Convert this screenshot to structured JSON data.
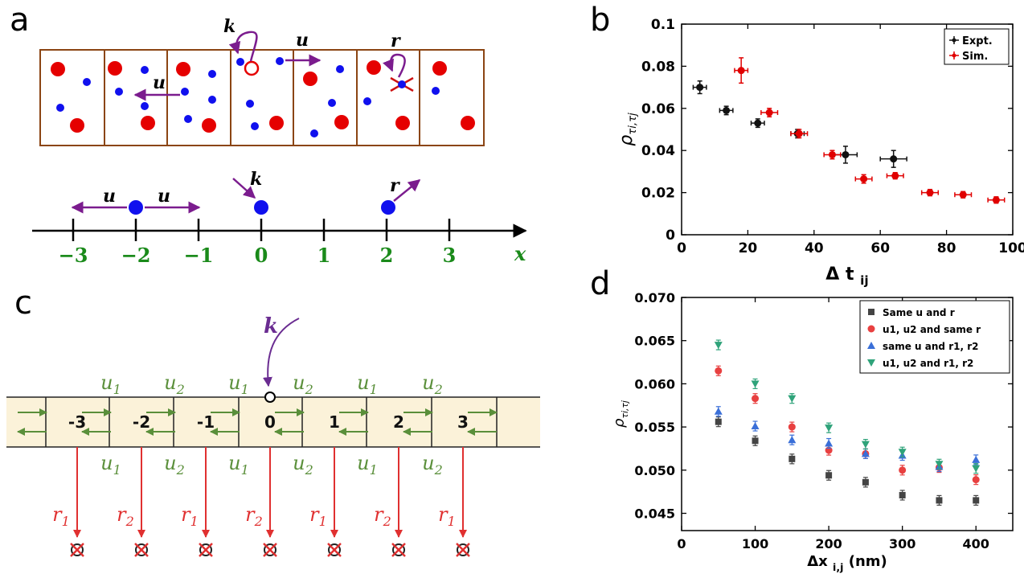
{
  "panel_labels": {
    "a": "a",
    "b": "b",
    "c": "c",
    "d": "d"
  },
  "panel_a": {
    "box_labels": {
      "u_left": "u",
      "k": "k",
      "u_right": "u",
      "r": "r"
    },
    "line_labels": {
      "u_left": "u",
      "u_right": "u",
      "k": "k",
      "r": "r"
    },
    "ticks": [
      "−3",
      "−2",
      "−1",
      "0",
      "1",
      "2",
      "3"
    ],
    "axis_label": "x",
    "colors": {
      "particle": "#e50000",
      "small": "#0000ee",
      "arrow": "#7b1c8e",
      "box": "#8b4513",
      "tick_label": "#1a8a1a"
    }
  },
  "panel_c": {
    "k_label": "k",
    "cells": [
      "-3",
      "-2",
      "-1",
      "0",
      "1",
      "2",
      "3"
    ],
    "top_rates": [
      "u1",
      "u2",
      "u1",
      "u2",
      "u1",
      "u2"
    ],
    "bottom_rates": [
      "u1",
      "u2",
      "u1",
      "u2",
      "u1",
      "u2"
    ],
    "removal_rates": [
      "r1",
      "r2",
      "r1",
      "r2",
      "r1",
      "r2",
      "r1"
    ],
    "colors": {
      "rate": "#5a8f3a",
      "removal": "#e03030",
      "k": "#6a2c91",
      "band": "#fbf2d9"
    }
  },
  "chart_data": [
    {
      "type": "scatter",
      "panel": "b",
      "xlabel": "Δ t",
      "xlabel_sub": "ij",
      "ylabel": "ρ",
      "ylabel_sub": "τi,τj",
      "xlim": [
        0,
        100
      ],
      "ylim": [
        0,
        0.1
      ],
      "xticks": [
        "0",
        "20",
        "40",
        "60",
        "80",
        "100"
      ],
      "yticks": [
        "0",
        "0.02",
        "0.04",
        "0.06",
        "0.08",
        "0.1"
      ],
      "legend_position": "top-right",
      "series": [
        {
          "name": "Expt.",
          "color": "#111111",
          "x": [
            5.5,
            13.5,
            23,
            35,
            49.5,
            64
          ],
          "y": [
            0.07,
            0.059,
            0.053,
            0.048,
            0.038,
            0.036
          ],
          "xerr": [
            2,
            2,
            2,
            2,
            3.5,
            4
          ],
          "yerr": [
            0.003,
            0.002,
            0.002,
            0.002,
            0.004,
            0.004
          ]
        },
        {
          "name": "Sim.",
          "color": "#e00000",
          "x": [
            18,
            26.5,
            35.5,
            45.5,
            55,
            64.5,
            75,
            85,
            95
          ],
          "y": [
            0.078,
            0.058,
            0.048,
            0.038,
            0.0265,
            0.028,
            0.02,
            0.019,
            0.0165
          ],
          "xerr": [
            2,
            2.5,
            2.5,
            2.5,
            2.5,
            2.5,
            2.5,
            2.5,
            2.5
          ],
          "yerr": [
            0.006,
            0.002,
            0.002,
            0.002,
            0.002,
            0.0015,
            0.0015,
            0.0015,
            0.0015
          ]
        }
      ]
    },
    {
      "type": "scatter",
      "panel": "d",
      "xlabel": "Δx",
      "xlabel_sub": "i,j",
      "xlabel_unit": " (nm)",
      "ylabel": "ρ",
      "ylabel_sub": "τi,τj",
      "xlim": [
        0,
        450
      ],
      "ylim": [
        0.043,
        0.07
      ],
      "xticks": [
        "0",
        "100",
        "200",
        "300",
        "400"
      ],
      "yticks": [
        "0.045",
        "0.050",
        "0.055",
        "0.060",
        "0.065",
        "0.070"
      ],
      "legend_position": "top-right",
      "series": [
        {
          "name": "Same u and r",
          "color": "#444444",
          "marker": "square",
          "x": [
            50,
            100,
            150,
            200,
            250,
            300,
            350,
            400
          ],
          "y": [
            0.0556,
            0.0534,
            0.0513,
            0.0494,
            0.0486,
            0.0471,
            0.0465,
            0.0465
          ]
        },
        {
          "name": "u1, u2 and same r",
          "color": "#e84040",
          "marker": "circle",
          "x": [
            50,
            100,
            150,
            200,
            250,
            300,
            350,
            400
          ],
          "y": [
            0.0615,
            0.0583,
            0.055,
            0.0523,
            0.0519,
            0.05,
            0.0503,
            0.0489
          ]
        },
        {
          "name": "same u and r1, r2",
          "color": "#3a6fd8",
          "marker": "triangle-up",
          "x": [
            50,
            100,
            150,
            200,
            250,
            300,
            350,
            400
          ],
          "y": [
            0.0568,
            0.0551,
            0.0535,
            0.0531,
            0.0519,
            0.0517,
            0.0504,
            0.0512
          ]
        },
        {
          "name": "u1, u2 and r1, r2",
          "color": "#2fa37a",
          "marker": "triangle-down",
          "x": [
            50,
            100,
            150,
            200,
            250,
            300,
            350,
            400
          ],
          "y": [
            0.0645,
            0.06,
            0.0583,
            0.0549,
            0.053,
            0.0521,
            0.0507,
            0.0502
          ]
        }
      ]
    }
  ]
}
